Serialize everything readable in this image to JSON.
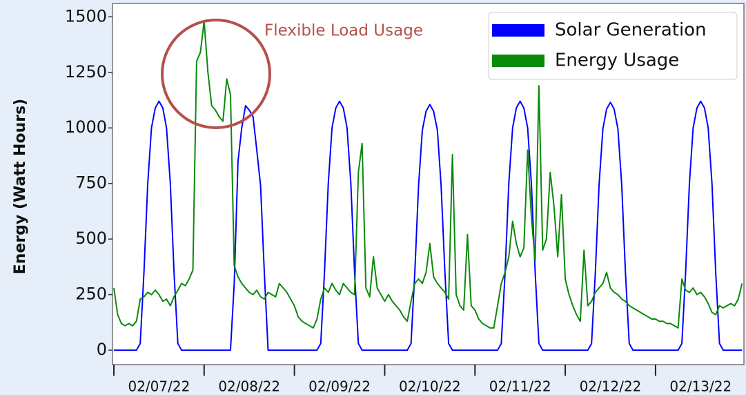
{
  "chart_data": {
    "type": "line",
    "ylabel": "Energy (Watt Hours)",
    "annotation": "Flexible Load Usage",
    "xlim": [
      0,
      167.5
    ],
    "ylim": [
      -65,
      1560
    ],
    "yticks": [
      0,
      250,
      500,
      750,
      1000,
      1250,
      1500
    ],
    "xticks": [
      {
        "value": 0,
        "label": "02/07/22"
      },
      {
        "value": 24,
        "label": "02/08/22"
      },
      {
        "value": 48,
        "label": "02/09/22"
      },
      {
        "value": 72,
        "label": "02/10/22"
      },
      {
        "value": 96,
        "label": "02/11/22"
      },
      {
        "value": 120,
        "label": "02/12/22"
      },
      {
        "value": 144,
        "label": "02/13/22"
      }
    ],
    "legend": "upper right",
    "x": [
      0,
      1,
      2,
      3,
      4,
      5,
      6,
      7,
      8,
      9,
      10,
      11,
      12,
      13,
      14,
      15,
      16,
      17,
      18,
      19,
      20,
      21,
      22,
      23,
      24,
      25,
      26,
      27,
      28,
      29,
      30,
      31,
      32,
      33,
      34,
      35,
      36,
      37,
      38,
      39,
      40,
      41,
      42,
      43,
      44,
      45,
      46,
      47,
      48,
      49,
      50,
      51,
      52,
      53,
      54,
      55,
      56,
      57,
      58,
      59,
      60,
      61,
      62,
      63,
      64,
      65,
      66,
      67,
      68,
      69,
      70,
      71,
      72,
      73,
      74,
      75,
      76,
      77,
      78,
      79,
      80,
      81,
      82,
      83,
      84,
      85,
      86,
      87,
      88,
      89,
      90,
      91,
      92,
      93,
      94,
      95,
      96,
      97,
      98,
      99,
      100,
      101,
      102,
      103,
      104,
      105,
      106,
      107,
      108,
      109,
      110,
      111,
      112,
      113,
      114,
      115,
      116,
      117,
      118,
      119,
      120,
      121,
      122,
      123,
      124,
      125,
      126,
      127,
      128,
      129,
      130,
      131,
      132,
      133,
      134,
      135,
      136,
      137,
      138,
      139,
      140,
      141,
      142,
      143,
      144,
      145,
      146,
      147,
      148,
      149,
      150,
      151,
      152,
      153,
      154,
      155,
      156,
      157,
      158,
      159,
      160,
      161,
      162,
      163,
      164,
      165,
      166,
      167
    ],
    "series": [
      {
        "name": "Solar Generation",
        "color": "#0000ff",
        "values": [
          0,
          0,
          0,
          0,
          0,
          0,
          0,
          30,
          350,
          750,
          1000,
          1090,
          1120,
          1090,
          1000,
          750,
          350,
          30,
          0,
          0,
          0,
          0,
          0,
          0,
          0,
          0,
          0,
          0,
          0,
          0,
          0,
          0,
          300,
          850,
          1000,
          1100,
          1080,
          1050,
          900,
          740,
          350,
          0,
          0,
          0,
          0,
          0,
          0,
          0,
          0,
          0,
          0,
          0,
          0,
          0,
          0,
          30,
          350,
          750,
          1000,
          1090,
          1120,
          1090,
          1000,
          750,
          350,
          30,
          0,
          0,
          0,
          0,
          0,
          0,
          0,
          0,
          0,
          0,
          0,
          0,
          0,
          30,
          350,
          740,
          990,
          1075,
          1105,
          1075,
          990,
          740,
          350,
          30,
          0,
          0,
          0,
          0,
          0,
          0,
          0,
          0,
          0,
          0,
          0,
          0,
          0,
          30,
          350,
          750,
          1000,
          1090,
          1120,
          1090,
          1000,
          750,
          350,
          30,
          0,
          0,
          0,
          0,
          0,
          0,
          0,
          0,
          0,
          0,
          0,
          0,
          0,
          30,
          350,
          745,
          995,
          1085,
          1115,
          1085,
          995,
          745,
          350,
          30,
          0,
          0,
          0,
          0,
          0,
          0,
          0,
          0,
          0,
          0,
          0,
          0,
          0,
          30,
          350,
          750,
          1000,
          1090,
          1120,
          1090,
          1000,
          750,
          350,
          30,
          0,
          0,
          0,
          0,
          0,
          0
        ]
      },
      {
        "name": "Energy Usage",
        "color": "#0a8a0a",
        "values": [
          280,
          160,
          120,
          110,
          120,
          110,
          130,
          230,
          240,
          260,
          250,
          270,
          250,
          220,
          230,
          200,
          240,
          270,
          300,
          290,
          320,
          360,
          1300,
          1340,
          1480,
          1250,
          1100,
          1080,
          1050,
          1030,
          1220,
          1150,
          380,
          330,
          300,
          280,
          260,
          250,
          270,
          240,
          230,
          260,
          250,
          240,
          300,
          280,
          260,
          230,
          200,
          150,
          130,
          120,
          110,
          100,
          140,
          230,
          280,
          260,
          300,
          270,
          250,
          300,
          280,
          260,
          250,
          800,
          930,
          280,
          240,
          420,
          280,
          250,
          220,
          250,
          220,
          200,
          180,
          150,
          130,
          220,
          300,
          320,
          300,
          350,
          480,
          330,
          300,
          280,
          260,
          230,
          880,
          250,
          200,
          180,
          520,
          200,
          180,
          140,
          120,
          110,
          100,
          100,
          200,
          300,
          350,
          420,
          580,
          480,
          420,
          460,
          900,
          600,
          400,
          1190,
          450,
          500,
          800,
          650,
          420,
          700,
          320,
          250,
          200,
          160,
          130,
          450,
          200,
          220,
          260,
          280,
          300,
          350,
          280,
          260,
          250,
          230,
          220,
          200,
          190,
          180,
          170,
          160,
          150,
          140,
          140,
          130,
          130,
          120,
          120,
          110,
          100,
          320,
          270,
          260,
          280,
          250,
          260,
          240,
          210,
          170,
          160,
          200,
          190,
          200,
          210,
          200,
          230,
          300
        ]
      }
    ]
  }
}
